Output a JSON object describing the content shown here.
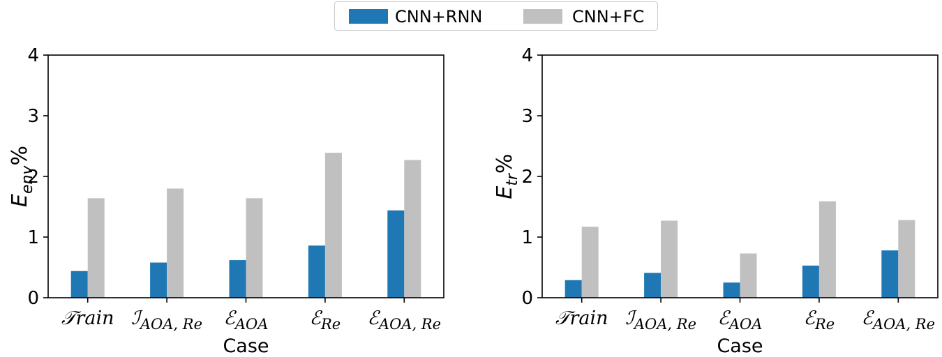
{
  "legend": {
    "items": [
      {
        "label": "CNN+RNN",
        "color": "#1f77b4"
      },
      {
        "label": "CNN+FC",
        "color": "#c0c0c0"
      }
    ]
  },
  "chart_data": [
    {
      "type": "bar",
      "categories": [
        "𝒯rain",
        "ℐAOA, Re",
        "ℰAOA",
        "ℰRe",
        "ℰAOA, Re"
      ],
      "category_parts": [
        {
          "main": "𝒯rain",
          "sub": ""
        },
        {
          "main": "ℐ",
          "sub": "AOA, Re"
        },
        {
          "main": "ℰ",
          "sub": "AOA"
        },
        {
          "main": "ℰ",
          "sub": "Re"
        },
        {
          "main": "ℰ",
          "sub": "AOA, Re"
        }
      ],
      "series": [
        {
          "name": "CNN+RNN",
          "values": [
            0.44,
            0.58,
            0.62,
            0.86,
            1.44
          ],
          "color": "#1f77b4"
        },
        {
          "name": "CNN+FC",
          "values": [
            1.64,
            1.8,
            1.64,
            2.39,
            2.27
          ],
          "color": "#c0c0c0"
        }
      ],
      "xlabel": "Case",
      "ylabel": {
        "main": "E",
        "sub": "env",
        "suffix": "%"
      },
      "ylim": [
        0,
        4
      ],
      "yticks": [
        0,
        1,
        2,
        3,
        4
      ],
      "grid": false
    },
    {
      "type": "bar",
      "categories": [
        "𝒯rain",
        "ℐAOA, Re",
        "ℰAOA",
        "ℰRe",
        "ℰAOA, Re"
      ],
      "category_parts": [
        {
          "main": "𝒯rain",
          "sub": ""
        },
        {
          "main": "ℐ",
          "sub": "AOA, Re"
        },
        {
          "main": "ℰ",
          "sub": "AOA"
        },
        {
          "main": "ℰ",
          "sub": "Re"
        },
        {
          "main": "ℰ",
          "sub": "AOA, Re"
        }
      ],
      "series": [
        {
          "name": "CNN+RNN",
          "values": [
            0.29,
            0.41,
            0.25,
            0.53,
            0.78
          ],
          "color": "#1f77b4"
        },
        {
          "name": "CNN+FC",
          "values": [
            1.17,
            1.27,
            0.73,
            1.59,
            1.28
          ],
          "color": "#c0c0c0"
        }
      ],
      "xlabel": "Case",
      "ylabel": {
        "main": "E",
        "sub": "tr",
        "suffix": "%"
      },
      "ylim": [
        0,
        4
      ],
      "yticks": [
        0,
        1,
        2,
        3,
        4
      ],
      "grid": false
    }
  ]
}
